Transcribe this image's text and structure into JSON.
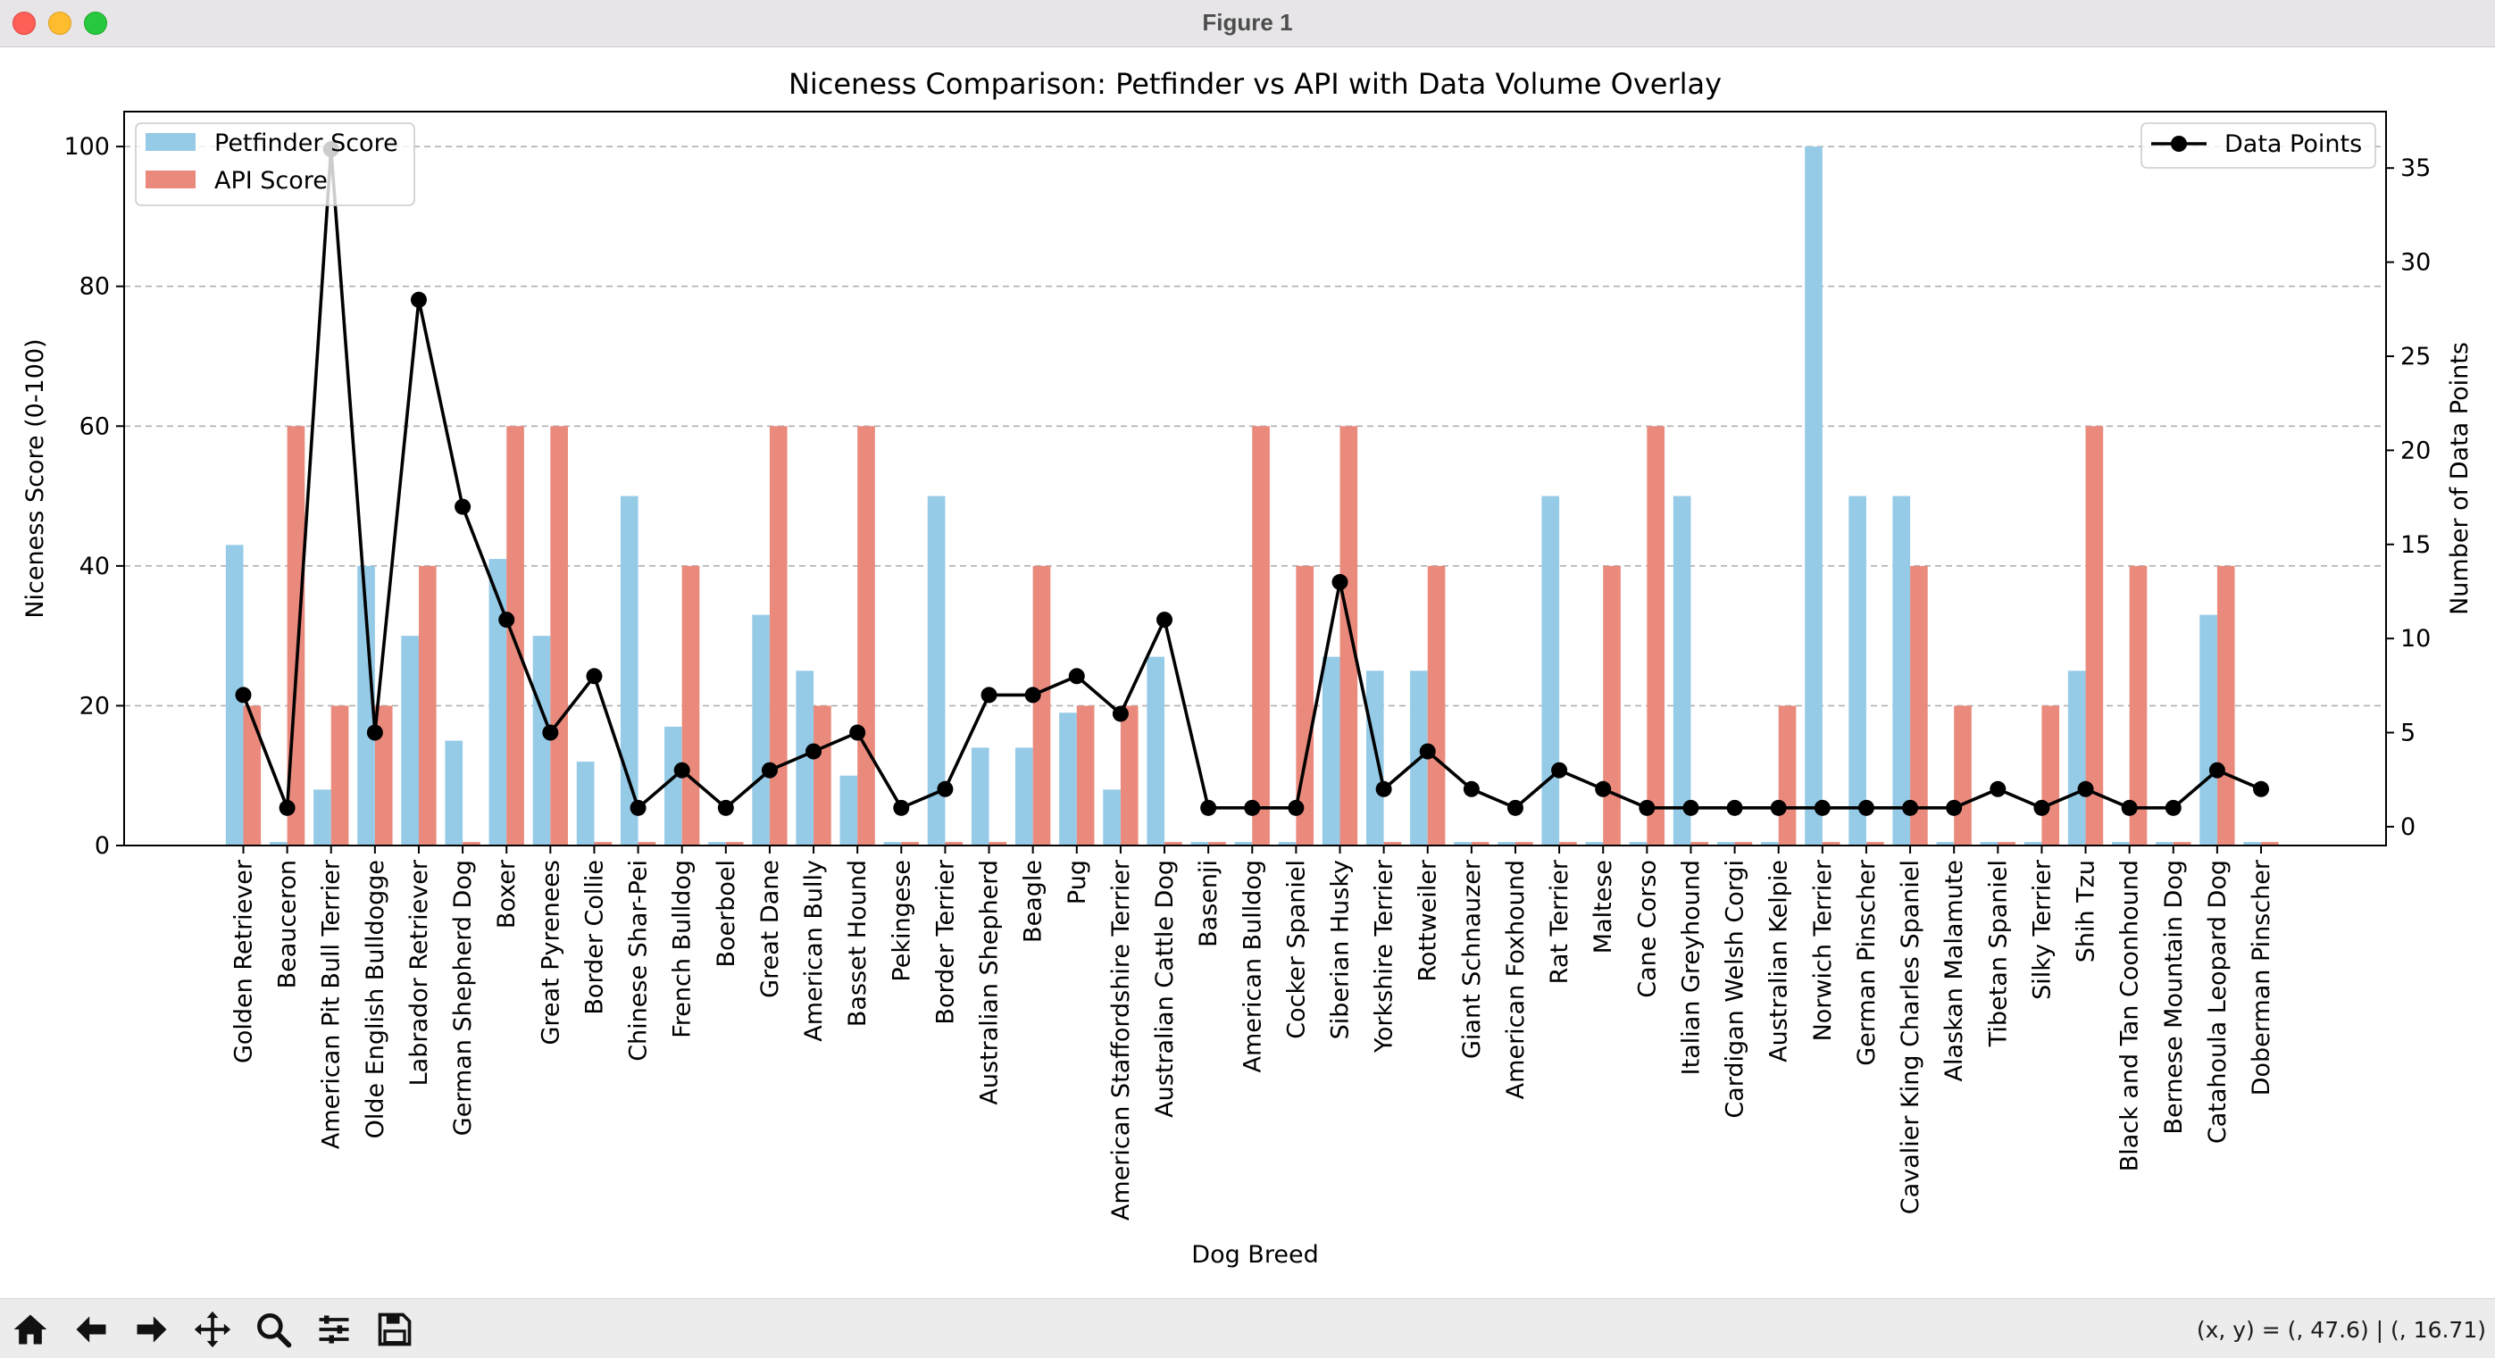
{
  "window": {
    "title": "Figure 1"
  },
  "toolbar": {
    "buttons": [
      "home-icon",
      "back-arrow-icon",
      "forward-arrow-icon",
      "pan-move-icon",
      "zoom-magnifier-icon",
      "configure-subplots-icon",
      "save-disk-icon"
    ],
    "coords_text": "(x, y) = (, 47.6) | (, 16.71)"
  },
  "chart_data": {
    "type": "bar",
    "title": "Niceness Comparison: Petfinder vs API with Data Volume Overlay",
    "xlabel": "Dog Breed",
    "ylabel": "Niceness Score (0-100)",
    "ylabel_right": "Number of Data Points",
    "ylim": [
      0,
      105
    ],
    "ylim_right": [
      -1,
      38
    ],
    "yticks": [
      0,
      20,
      40,
      60,
      80,
      100
    ],
    "yticks_right": [
      0,
      5,
      10,
      15,
      20,
      25,
      30,
      35
    ],
    "grid": "y-dashed",
    "legend_left": {
      "placement": "upper-left",
      "entries": [
        "Petfinder Score",
        "API Score"
      ]
    },
    "legend_right": {
      "placement": "upper-right",
      "entries": [
        "Data Points"
      ]
    },
    "colors": {
      "petfinder": "#96cbe8",
      "api": "#ea8a7c",
      "line": "#000000"
    },
    "categories": [
      "Golden Retriever",
      "Beauceron",
      "American Pit Bull Terrier",
      "Olde English Bulldogge",
      "Labrador Retriever",
      "German Shepherd Dog",
      "Boxer",
      "Great Pyrenees",
      "Border Collie",
      "Chinese Shar-Pei",
      "French Bulldog",
      "Boerboel",
      "Great Dane",
      "American Bully",
      "Basset Hound",
      "Pekingese",
      "Border Terrier",
      "Australian Shepherd",
      "Beagle",
      "Pug",
      "American Staffordshire Terrier",
      "Australian Cattle Dog",
      "Basenji",
      "American Bulldog",
      "Cocker Spaniel",
      "Siberian Husky",
      "Yorkshire Terrier",
      "Rottweiler",
      "Giant Schnauzer",
      "American Foxhound",
      "Rat Terrier",
      "Maltese",
      "Cane Corso",
      "Italian Greyhound",
      "Cardigan Welsh Corgi",
      "Australian Kelpie",
      "Norwich Terrier",
      "German Pinscher",
      "Cavalier King Charles Spaniel",
      "Alaskan Malamute",
      "Tibetan Spaniel",
      "Silky Terrier",
      "Shih Tzu",
      "Black and Tan Coonhound",
      "Bernese Mountain Dog",
      "Catahoula Leopard Dog",
      "Doberman Pinscher"
    ],
    "series": [
      {
        "name": "Petfinder Score",
        "axis": "left",
        "kind": "bar",
        "values": [
          43,
          0.5,
          8,
          40,
          30,
          15,
          41,
          30,
          12,
          50,
          17,
          0.5,
          33,
          25,
          10,
          0.5,
          50,
          14,
          14,
          19,
          8,
          27,
          0.5,
          0.5,
          0.5,
          27,
          25,
          25,
          0.5,
          0.5,
          50,
          0.5,
          0.5,
          50,
          0.5,
          0.5,
          100,
          50,
          50,
          0.5,
          0.5,
          0.5,
          25,
          0.5,
          0.5,
          33,
          0.5
        ]
      },
      {
        "name": "API Score",
        "axis": "left",
        "kind": "bar",
        "values": [
          20,
          60,
          20,
          20,
          40,
          0.5,
          60,
          60,
          0.5,
          0.5,
          40,
          0.5,
          60,
          20,
          60,
          0.5,
          0.5,
          0.5,
          40,
          20,
          20,
          0.5,
          0.5,
          60,
          40,
          60,
          0.5,
          40,
          0.5,
          0.5,
          0.5,
          40,
          60,
          0.5,
          0.5,
          20,
          0.5,
          0.5,
          40,
          20,
          0.5,
          20,
          60,
          40,
          0.5,
          40,
          0.5
        ]
      },
      {
        "name": "Data Points",
        "axis": "right",
        "kind": "line",
        "values": [
          7,
          1,
          36,
          5,
          28,
          17,
          11,
          5,
          8,
          1,
          3,
          1,
          3,
          4,
          5,
          1,
          2,
          7,
          7,
          8,
          6,
          11,
          1,
          1,
          1,
          13,
          2,
          4,
          2,
          1,
          3,
          2,
          1,
          1,
          1,
          1,
          1,
          1,
          1,
          1,
          2,
          1,
          2,
          1,
          1,
          3,
          2
        ]
      }
    ]
  }
}
